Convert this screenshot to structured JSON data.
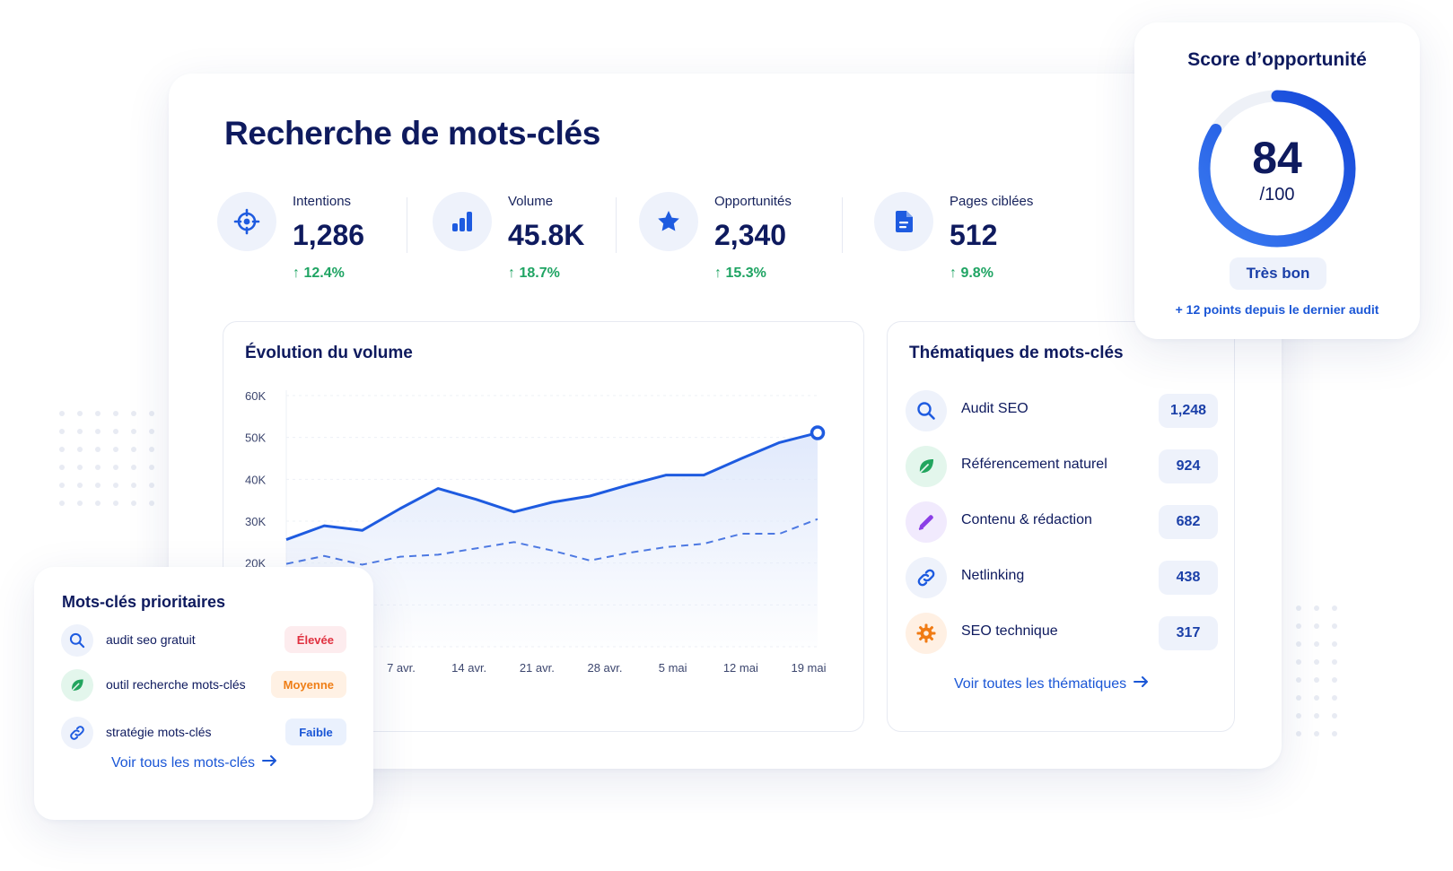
{
  "page": {
    "title": "Recherche de mots-clés"
  },
  "kpis": [
    {
      "icon": "target-icon",
      "label": "Intentions",
      "value": "1,286",
      "delta": "12.4%"
    },
    {
      "icon": "bar-chart-icon",
      "label": "Volume",
      "value": "45.8K",
      "delta": "18.7%"
    },
    {
      "icon": "star-icon",
      "label": "Opportunités",
      "value": "2,340",
      "delta": "15.3%"
    },
    {
      "icon": "document-icon",
      "label": "Pages ciblées",
      "value": "512",
      "delta": "9.8%"
    }
  ],
  "volume_chart": {
    "title": "Évolution du volume"
  },
  "chart_data": {
    "type": "area",
    "title": "Évolution du volume",
    "x_tick_labels": [
      "7 avr.",
      "14 avr.",
      "21 avr.",
      "28 avr.",
      "5 mai",
      "12 mai",
      "19 mai"
    ],
    "y_tick_labels": [
      "60K",
      "50K",
      "40K",
      "30K",
      "20K"
    ],
    "ylim": [
      0,
      60000
    ],
    "grid": true,
    "series": [
      {
        "style": "solid",
        "values": [
          25600,
          28900,
          27800,
          33000,
          37800,
          35200,
          32200,
          34500,
          36000,
          38600,
          41000,
          41000,
          45000,
          48800,
          51100
        ]
      },
      {
        "style": "dashed",
        "values": [
          19800,
          21700,
          19600,
          21500,
          22000,
          23500,
          25000,
          23000,
          20600,
          22400,
          23800,
          24600,
          27000,
          27000,
          30500
        ]
      }
    ],
    "colors": {
      "solid": "#1e5be0",
      "dashed": "#4d79e2",
      "area": "#dfe8fb"
    }
  },
  "themes": {
    "title": "Thématiques de mots-clés",
    "items": [
      {
        "icon": "search-icon",
        "label": "Audit SEO",
        "count": "1,248"
      },
      {
        "icon": "leaf-icon",
        "label": "Référencement naturel",
        "count": "924"
      },
      {
        "icon": "pencil-icon",
        "label": "Contenu & rédaction",
        "count": "682"
      },
      {
        "icon": "link-icon",
        "label": "Netlinking",
        "count": "438"
      },
      {
        "icon": "gear-icon",
        "label": "SEO technique",
        "count": "317"
      }
    ],
    "link": "Voir toutes les thématiques"
  },
  "score": {
    "title": "Score d’opportunité",
    "value": "84",
    "max": "/100",
    "fraction": 0.84,
    "badge": "Très bon",
    "note": "+ 12 points depuis le dernier audit"
  },
  "priority": {
    "title": "Mots-clés prioritaires",
    "items": [
      {
        "icon": "search-icon",
        "label": "audit seo gratuit",
        "tag": "Élevée"
      },
      {
        "icon": "leaf-icon",
        "label": "outil recherche mots-clés",
        "tag": "Moyenne"
      },
      {
        "icon": "link-icon",
        "label": "stratégie mots-clés",
        "tag": "Faible"
      }
    ],
    "link": "Voir tous les mots-clés"
  },
  "colors": {
    "navy": "#0e1a5e",
    "accent": "#1a56d6",
    "positive": "#1fa463",
    "high": "#e0303f",
    "medium": "#ef7e16"
  }
}
